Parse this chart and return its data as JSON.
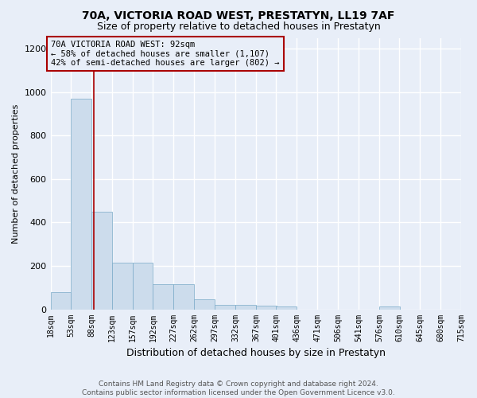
{
  "title": "70A, VICTORIA ROAD WEST, PRESTATYN, LL19 7AF",
  "subtitle": "Size of property relative to detached houses in Prestatyn",
  "xlabel": "Distribution of detached houses by size in Prestatyn",
  "ylabel": "Number of detached properties",
  "annotation_text": "70A VICTORIA ROAD WEST: 92sqm\n← 58% of detached houses are smaller (1,107)\n42% of semi-detached houses are larger (802) →",
  "footer": "Contains HM Land Registry data © Crown copyright and database right 2024.\nContains public sector information licensed under the Open Government Licence v3.0.",
  "bin_edges": [
    18,
    53,
    88,
    123,
    157,
    192,
    227,
    262,
    297,
    332,
    367,
    401,
    436,
    471,
    506,
    541,
    576,
    610,
    645,
    680,
    715
  ],
  "bar_heights": [
    80,
    970,
    450,
    215,
    215,
    115,
    115,
    45,
    22,
    22,
    18,
    12,
    0,
    0,
    0,
    0,
    12,
    0,
    0,
    0
  ],
  "property_value": 92,
  "bar_color": "#ccdcec",
  "bar_edge_color": "#7aaac8",
  "vline_color": "#aa0000",
  "background_color": "#e8eef8",
  "grid_color": "#ffffff",
  "ylim": [
    0,
    1250
  ],
  "yticks": [
    0,
    200,
    400,
    600,
    800,
    1000,
    1200
  ],
  "title_fontsize": 10,
  "subtitle_fontsize": 9,
  "xlabel_fontsize": 9,
  "ylabel_fontsize": 8,
  "tick_fontsize": 7,
  "annotation_fontsize": 7.5,
  "footer_fontsize": 6.5
}
